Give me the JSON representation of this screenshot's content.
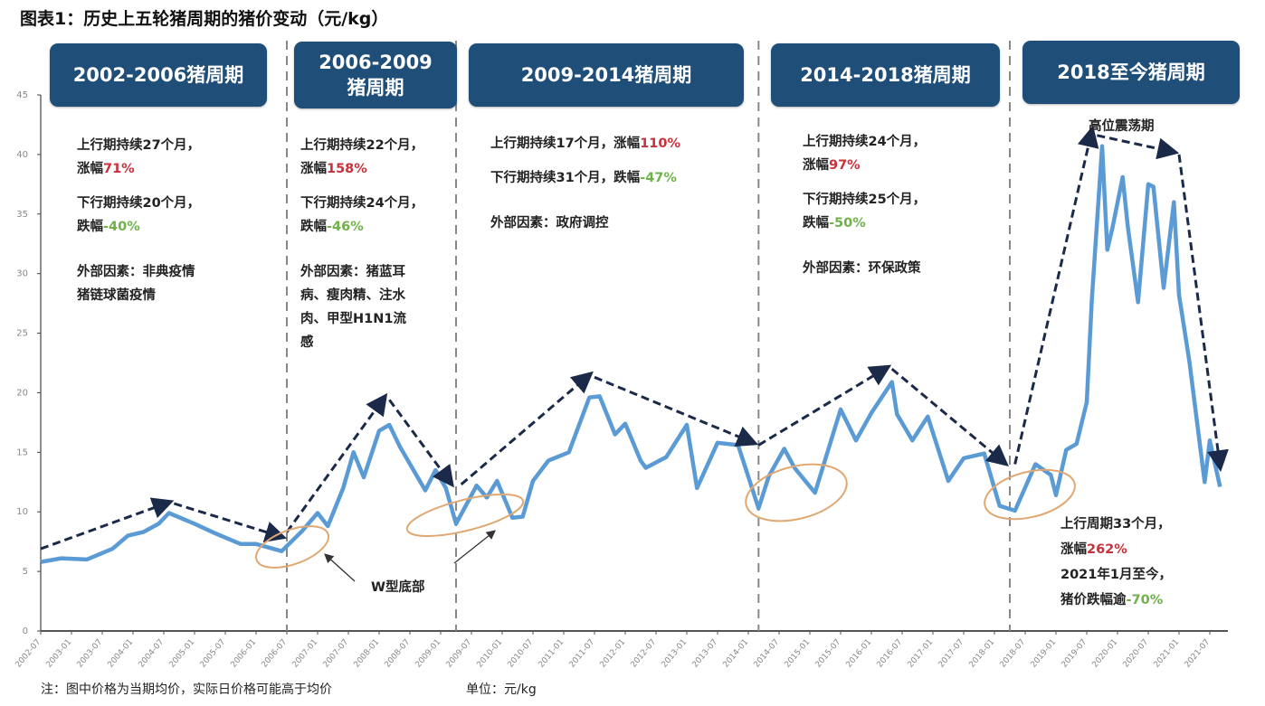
{
  "title": "图表1：历史上五轮猪周期的猪价变动（元/kg）",
  "footnote": "注：图中价格为当期均价，实际日价格可能高于均价",
  "unit_note": "单位：元/kg",
  "colors": {
    "line": "#5b9bd5",
    "header_bg": "#1f4e79",
    "rise": "#c8303a",
    "fall": "#6fb24a",
    "ellipse": "#e0a872",
    "trend_arrow": "#1c2a4a"
  },
  "cycles": [
    {
      "header": "2002-2006猪周期",
      "lines": [
        {
          "t": "上行期持续27个月，"
        },
        {
          "t": "涨幅",
          "p": "71%",
          "c": "up"
        },
        {
          "gap": true
        },
        {
          "t": "下行期持续20个月，"
        },
        {
          "t": "跌幅",
          "p": "-40%",
          "c": "down"
        },
        {
          "gap": true
        },
        {
          "gap": true
        },
        {
          "t": "外部因素：非典疫情"
        },
        {
          "t": "猪链球菌疫情"
        }
      ]
    },
    {
      "header": "2006-2009 猪周期",
      "lines": [
        {
          "t": "上行期持续22个月，"
        },
        {
          "t": "涨幅",
          "p": "158%",
          "c": "up"
        },
        {
          "gap": true
        },
        {
          "t": "下行期持续24个月，"
        },
        {
          "t": "跌幅",
          "p": "-46%",
          "c": "down"
        },
        {
          "gap": true
        },
        {
          "gap": true
        },
        {
          "t": "外部因素：猪蓝耳"
        },
        {
          "t": "病、瘦肉精、注水"
        },
        {
          "t": "肉、甲型H1N1流"
        },
        {
          "t": "感"
        }
      ]
    },
    {
      "header": "2009-2014猪周期",
      "lines": [
        {
          "t": "上行期持续17个月，涨幅",
          "p": "110%",
          "c": "up"
        },
        {
          "gap": true
        },
        {
          "t": "下行期持续31个月，跌幅",
          "p": "-47%",
          "c": "down"
        },
        {
          "gap": true
        },
        {
          "gap": true
        },
        {
          "t": "外部因素：政府调控"
        }
      ]
    },
    {
      "header": "2014-2018猪周期",
      "lines": [
        {
          "t": "上行期持续24个月，"
        },
        {
          "t": "涨幅",
          "p": "97%",
          "c": "up"
        },
        {
          "gap": true
        },
        {
          "t": "下行期持续25个月，"
        },
        {
          "t": "跌幅",
          "p": "-50%",
          "c": "down"
        },
        {
          "gap": true
        },
        {
          "gap": true
        },
        {
          "t": "外部因素：环保政策"
        }
      ]
    },
    {
      "header": "2018至今猪周期",
      "lines": [
        {
          "t": "上行周期33个月，"
        },
        {
          "t": "涨幅",
          "p": "262%",
          "c": "up"
        },
        {
          "t": "2021年1月至今，"
        },
        {
          "t": "猪价跌幅逾",
          "p": "-70%",
          "c": "down"
        }
      ]
    }
  ],
  "annotations": {
    "high_oscillation": "高位震荡期",
    "w_bottom": "W型底部"
  },
  "chart_data": {
    "type": "line",
    "title": "图表1：历史上五轮猪周期的猪价变动（元/kg）",
    "xlabel": "",
    "ylabel": "",
    "ylim": [
      0,
      45
    ],
    "yticks": [
      0,
      5,
      10,
      15,
      20,
      25,
      30,
      35,
      40,
      45
    ],
    "xticks": [
      "2002-07",
      "2003-01",
      "2003-07",
      "2004-01",
      "2004-07",
      "2005-01",
      "2005-07",
      "2006-01",
      "2006-07",
      "2007-01",
      "2007-07",
      "2008-01",
      "2008-07",
      "2009-01",
      "2009-07",
      "2010-01",
      "2010-07",
      "2011-01",
      "2011-07",
      "2012-01",
      "2012-07",
      "2013-01",
      "2013-07",
      "2014-01",
      "2014-07",
      "2015-01",
      "2015-07",
      "2016-01",
      "2016-07",
      "2017-01",
      "2017-07",
      "2018-01",
      "2018-07",
      "2019-01",
      "2019-07",
      "2020-01",
      "2020-07",
      "2021-01",
      "2021-07"
    ],
    "grid": false,
    "legend": "none",
    "series": [
      {
        "x": [
          "2002-07",
          "2002-11",
          "2003-04",
          "2003-09",
          "2003-12",
          "2004-03",
          "2004-06",
          "2004-08",
          "2005-01",
          "2005-05",
          "2005-10",
          "2006-01",
          "2006-06",
          "2006-10",
          "2007-01",
          "2007-03",
          "2007-06",
          "2007-08",
          "2007-10",
          "2008-01",
          "2008-03",
          "2008-05",
          "2008-10",
          "2008-12",
          "2009-02",
          "2009-04",
          "2009-08",
          "2009-10",
          "2009-12",
          "2010-03",
          "2010-05",
          "2010-07",
          "2010-10",
          "2011-02",
          "2011-06",
          "2011-08",
          "2011-11",
          "2012-01",
          "2012-04",
          "2012-05",
          "2012-09",
          "2013-01",
          "2013-03",
          "2013-07",
          "2013-11",
          "2014-03",
          "2014-05",
          "2014-08",
          "2014-10",
          "2015-02",
          "2015-07",
          "2015-10",
          "2016-01",
          "2016-05",
          "2016-06",
          "2016-09",
          "2016-12",
          "2017-04",
          "2017-07",
          "2017-11",
          "2018-02",
          "2018-05",
          "2018-09",
          "2018-12",
          "2019-01",
          "2019-03",
          "2019-05",
          "2019-07",
          "2019-08",
          "2019-10",
          "2019-11",
          "2019-12",
          "2020-02",
          "2020-03",
          "2020-05",
          "2020-07",
          "2020-08",
          "2020-10",
          "2020-12",
          "2021-01",
          "2021-03",
          "2021-06",
          "2021-07",
          "2021-09"
        ],
        "y": [
          5.8,
          6.1,
          6.0,
          6.9,
          8.0,
          8.3,
          9.0,
          9.9,
          9.0,
          8.2,
          7.3,
          7.3,
          6.7,
          8.4,
          9.9,
          8.8,
          12.0,
          15.0,
          12.9,
          16.8,
          17.3,
          15.5,
          11.8,
          13.5,
          12.0,
          9.0,
          12.2,
          11.2,
          12.6,
          9.5,
          9.6,
          12.6,
          14.3,
          15.0,
          19.6,
          19.7,
          16.5,
          17.4,
          14.3,
          13.7,
          14.6,
          17.3,
          12.0,
          15.8,
          15.6,
          10.3,
          13.0,
          15.3,
          13.7,
          11.6,
          18.6,
          16.0,
          18.3,
          20.9,
          18.2,
          16.0,
          18.0,
          12.6,
          14.5,
          14.9,
          10.5,
          10.1,
          14.0,
          13.1,
          11.4,
          15.2,
          15.7,
          19.2,
          27.9,
          40.7,
          32.0,
          33.8,
          38.1,
          34.0,
          27.6,
          37.5,
          37.3,
          28.8,
          36.0,
          28.2,
          22.7,
          12.5,
          16.0,
          12.1
        ]
      }
    ],
    "cycle_boundaries": [
      "2006-07",
      "2009-04",
      "2014-03",
      "2018-04"
    ],
    "trend_arrows": [
      [
        [
          "2002-07",
          6.9
        ],
        [
          "2004-08",
          10.8
        ]
      ],
      [
        [
          "2004-09",
          10.7
        ],
        [
          "2006-06",
          7.9
        ]
      ],
      [
        [
          "2006-07",
          8.3
        ],
        [
          "2008-02",
          19.6
        ]
      ],
      [
        [
          "2008-03",
          19.4
        ],
        [
          "2009-03",
          12.4
        ]
      ],
      [
        [
          "2009-05",
          12.3
        ],
        [
          "2011-06",
          21.5
        ]
      ],
      [
        [
          "2011-07",
          21.3
        ],
        [
          "2014-02",
          15.8
        ]
      ],
      [
        [
          "2014-03",
          15.6
        ],
        [
          "2016-04",
          22.1
        ]
      ],
      [
        [
          "2016-05",
          22.0
        ],
        [
          "2018-03",
          14.1
        ]
      ],
      [
        [
          "2018-05",
          14.0
        ],
        [
          "2019-08",
          42.0
        ]
      ],
      [
        [
          "2019-09",
          41.6
        ],
        [
          "2020-12",
          40.2
        ]
      ],
      [
        [
          "2021-01",
          40.0
        ],
        [
          "2021-09",
          13.8
        ]
      ]
    ]
  }
}
